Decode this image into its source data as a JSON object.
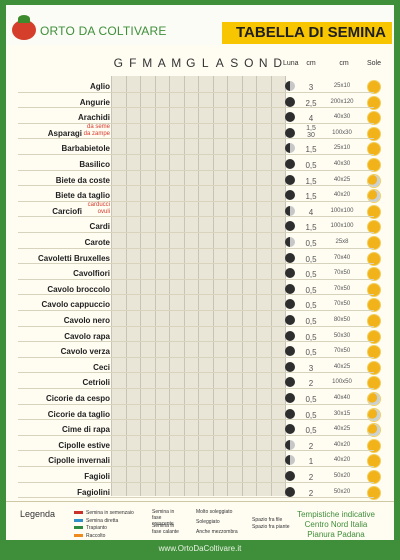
{
  "header": {
    "brand": "ORTO DA COLTIVARE",
    "title": "TABELLA DI SEMINA"
  },
  "months": [
    "G",
    "F",
    "M",
    "A",
    "M",
    "G",
    "L",
    "A",
    "S",
    "O",
    "N",
    "D"
  ],
  "columns": {
    "moon": "Luna",
    "depth": "cm",
    "distance": "cm",
    "sun": "Sole"
  },
  "colors": {
    "red": "#c8322b",
    "blue": "#2f91c8",
    "green": "#2d8a3e",
    "orange": "#ef8a1f"
  },
  "rows": [
    {
      "crop": "Aglio",
      "moon": "wan",
      "depth": "3",
      "distance": "25x10",
      "sun": "full",
      "bars": []
    },
    {
      "crop": "Angurie",
      "moon": "full",
      "depth": "2,5",
      "distance": "200x120",
      "sun": "full",
      "bars": []
    },
    {
      "crop": "Arachidi",
      "moon": "full",
      "depth": "4",
      "distance": "40x30",
      "sun": "full",
      "bars": []
    },
    {
      "crop": "Asparagi",
      "note": "da seme\nda zampe",
      "moon": "full",
      "depth": "1,5\n30",
      "distance": "100x30",
      "sun": "full",
      "bars": []
    },
    {
      "crop": "Barbabietole",
      "moon": "wan",
      "depth": "1,5",
      "distance": "25x10",
      "sun": "full",
      "bars": []
    },
    {
      "crop": "Basilico",
      "moon": "full",
      "depth": "0,5",
      "distance": "40x30",
      "sun": "full",
      "bars": []
    },
    {
      "crop": "Biete da coste",
      "moon": "full",
      "depth": "1,5",
      "distance": "40x25",
      "sun": "part",
      "bars": []
    },
    {
      "crop": "Biete da taglio",
      "moon": "full",
      "depth": "1,5",
      "distance": "40x20",
      "sun": "part",
      "bars": []
    },
    {
      "crop": "Carciofi",
      "note": "carducci\novuli",
      "moon": "wan",
      "depth": "4",
      "distance": "100x100",
      "sun": "full",
      "bars": []
    },
    {
      "crop": "Cardi",
      "moon": "full",
      "depth": "1,5",
      "distance": "100x100",
      "sun": "full",
      "bars": []
    },
    {
      "crop": "Carote",
      "moon": "wan",
      "depth": "0,5",
      "distance": "25x8",
      "sun": "full",
      "bars": []
    },
    {
      "crop": "Cavoletti Bruxelles",
      "moon": "full",
      "depth": "0,5",
      "distance": "70x40",
      "sun": "full",
      "bars": []
    },
    {
      "crop": "Cavolfiori",
      "moon": "full",
      "depth": "0,5",
      "distance": "70x50",
      "sun": "full",
      "bars": []
    },
    {
      "crop": "Cavolo broccolo",
      "moon": "full",
      "depth": "0,5",
      "distance": "70x50",
      "sun": "full",
      "bars": []
    },
    {
      "crop": "Cavolo cappuccio",
      "moon": "full",
      "depth": "0,5",
      "distance": "70x50",
      "sun": "full",
      "bars": []
    },
    {
      "crop": "Cavolo nero",
      "moon": "full",
      "depth": "0,5",
      "distance": "80x50",
      "sun": "full",
      "bars": []
    },
    {
      "crop": "Cavolo rapa",
      "moon": "full",
      "depth": "0,5",
      "distance": "50x30",
      "sun": "full",
      "bars": []
    },
    {
      "crop": "Cavolo verza",
      "moon": "full",
      "depth": "0,5",
      "distance": "70x50",
      "sun": "full",
      "bars": []
    },
    {
      "crop": "Ceci",
      "moon": "full",
      "depth": "3",
      "distance": "40x25",
      "sun": "full",
      "bars": []
    },
    {
      "crop": "Cetrioli",
      "moon": "full",
      "depth": "2",
      "distance": "100x50",
      "sun": "full",
      "bars": []
    },
    {
      "crop": "Cicorie da cespo",
      "moon": "full",
      "depth": "0,5",
      "distance": "40x40",
      "sun": "part",
      "bars": []
    },
    {
      "crop": "Cicorie da taglio",
      "moon": "full",
      "depth": "0,5",
      "distance": "30x15",
      "sun": "part",
      "bars": []
    },
    {
      "crop": "Cime di rapa",
      "moon": "full",
      "depth": "0,5",
      "distance": "40x25",
      "sun": "part",
      "bars": []
    },
    {
      "crop": "Cipolle estive",
      "moon": "wan",
      "depth": "2",
      "distance": "40x20",
      "sun": "full",
      "bars": []
    },
    {
      "crop": "Cipolle invernali",
      "moon": "wan",
      "depth": "1",
      "distance": "40x20",
      "sun": "full",
      "bars": []
    },
    {
      "crop": "Fagioli",
      "moon": "full",
      "depth": "2",
      "distance": "50x20",
      "sun": "full",
      "bars": []
    },
    {
      "crop": "Fagiolini",
      "moon": "full",
      "depth": "2",
      "distance": "50x20",
      "sun": "full",
      "bars": []
    }
  ],
  "legend": {
    "title": "Legenda",
    "items": [
      "Semina in semenzaio",
      "Semina diretta",
      "Trapianto",
      "Raccolto"
    ],
    "moon": [
      "Semina in fase crescente",
      "Semina in fase calante"
    ],
    "sun": [
      "Molto soleggiato",
      "Soleggiato",
      "Anche mezzombra"
    ],
    "spacing": [
      "Spazio fra file",
      "Spazio fra piante"
    ]
  },
  "footer": {
    "note": "Tempistiche indicative\nCentro Nord Italia\nPianura Padana",
    "url": "www.OrtoDaColtivare.it"
  }
}
